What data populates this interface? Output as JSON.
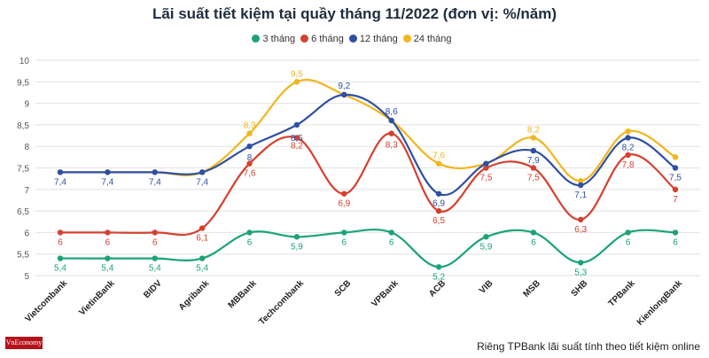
{
  "title": "Lãi suất tiết kiệm tại quầy tháng 11/2022 (đơn vị: %/năm)",
  "footer_note": "Riêng TPBank lãi suất tính theo tiết kiệm online",
  "brand": "VnEconomy",
  "chart_data": {
    "type": "line",
    "title": "Lãi suất tiết kiệm tại quầy tháng 11/2022 (đơn vị: %/năm)",
    "xlabel": "",
    "ylabel": "",
    "ylim": [
      5,
      10
    ],
    "yticks": [
      "5",
      "5,5",
      "6",
      "6,5",
      "7",
      "7,5",
      "8",
      "8,5",
      "9",
      "9,5",
      "10"
    ],
    "grid": true,
    "legend_position": "top-center",
    "categories": [
      "Vietcombank",
      "VietinBank",
      "BIDV",
      "Agribank",
      "MBBank",
      "Techcombank",
      "SCB",
      "VPBank",
      "ACB",
      "VIB",
      "MSB",
      "SHB",
      "TPBank",
      "KienlongBank"
    ],
    "series": [
      {
        "name": "3 tháng",
        "color": "#1aa378",
        "values": [
          5.4,
          5.4,
          5.4,
          5.4,
          6,
          5.9,
          6,
          6,
          5.2,
          5.9,
          6,
          5.3,
          6,
          6
        ],
        "labels": [
          "5,4",
          "5,4",
          "5,4",
          "5,4",
          "6",
          "5,9",
          "6",
          "6",
          "5,2",
          "5,9",
          "6",
          "5,3",
          "6",
          "6"
        ]
      },
      {
        "name": "6 tháng",
        "color": "#d6402f",
        "values": [
          6,
          6,
          6,
          6.1,
          7.6,
          8.2,
          6.9,
          8.3,
          6.5,
          7.5,
          7.5,
          6.3,
          7.8,
          7
        ],
        "labels": [
          "6",
          "6",
          "6",
          "6,1",
          "7,6",
          "8,2",
          "6,9",
          "8,3",
          "6,5",
          "7,5",
          "7,5",
          "6,3",
          "7,8",
          "7"
        ]
      },
      {
        "name": "12 tháng",
        "color": "#2f4fa2",
        "values": [
          7.4,
          7.4,
          7.4,
          7.4,
          8,
          8.5,
          9.2,
          8.6,
          6.9,
          7.6,
          7.9,
          7.1,
          8.2,
          7.5
        ],
        "labels": [
          "7,4",
          "7,4",
          "7,4",
          "7,4",
          "8",
          "8,5",
          "9,2",
          "8,6",
          "6,9",
          "",
          "7,9",
          "7,1",
          "8,2",
          "7,5"
        ]
      },
      {
        "name": "24 tháng",
        "color": "#f2b51c",
        "values": [
          7.4,
          7.4,
          7.4,
          7.4,
          8.3,
          9.5,
          9.2,
          8.6,
          7.6,
          7.6,
          8.2,
          7.2,
          8.35,
          7.75
        ],
        "labels": [
          "",
          "",
          "",
          "",
          "8,3",
          "9,5",
          "",
          "",
          "7,6",
          "",
          "8,2",
          "",
          "",
          ""
        ]
      }
    ]
  }
}
